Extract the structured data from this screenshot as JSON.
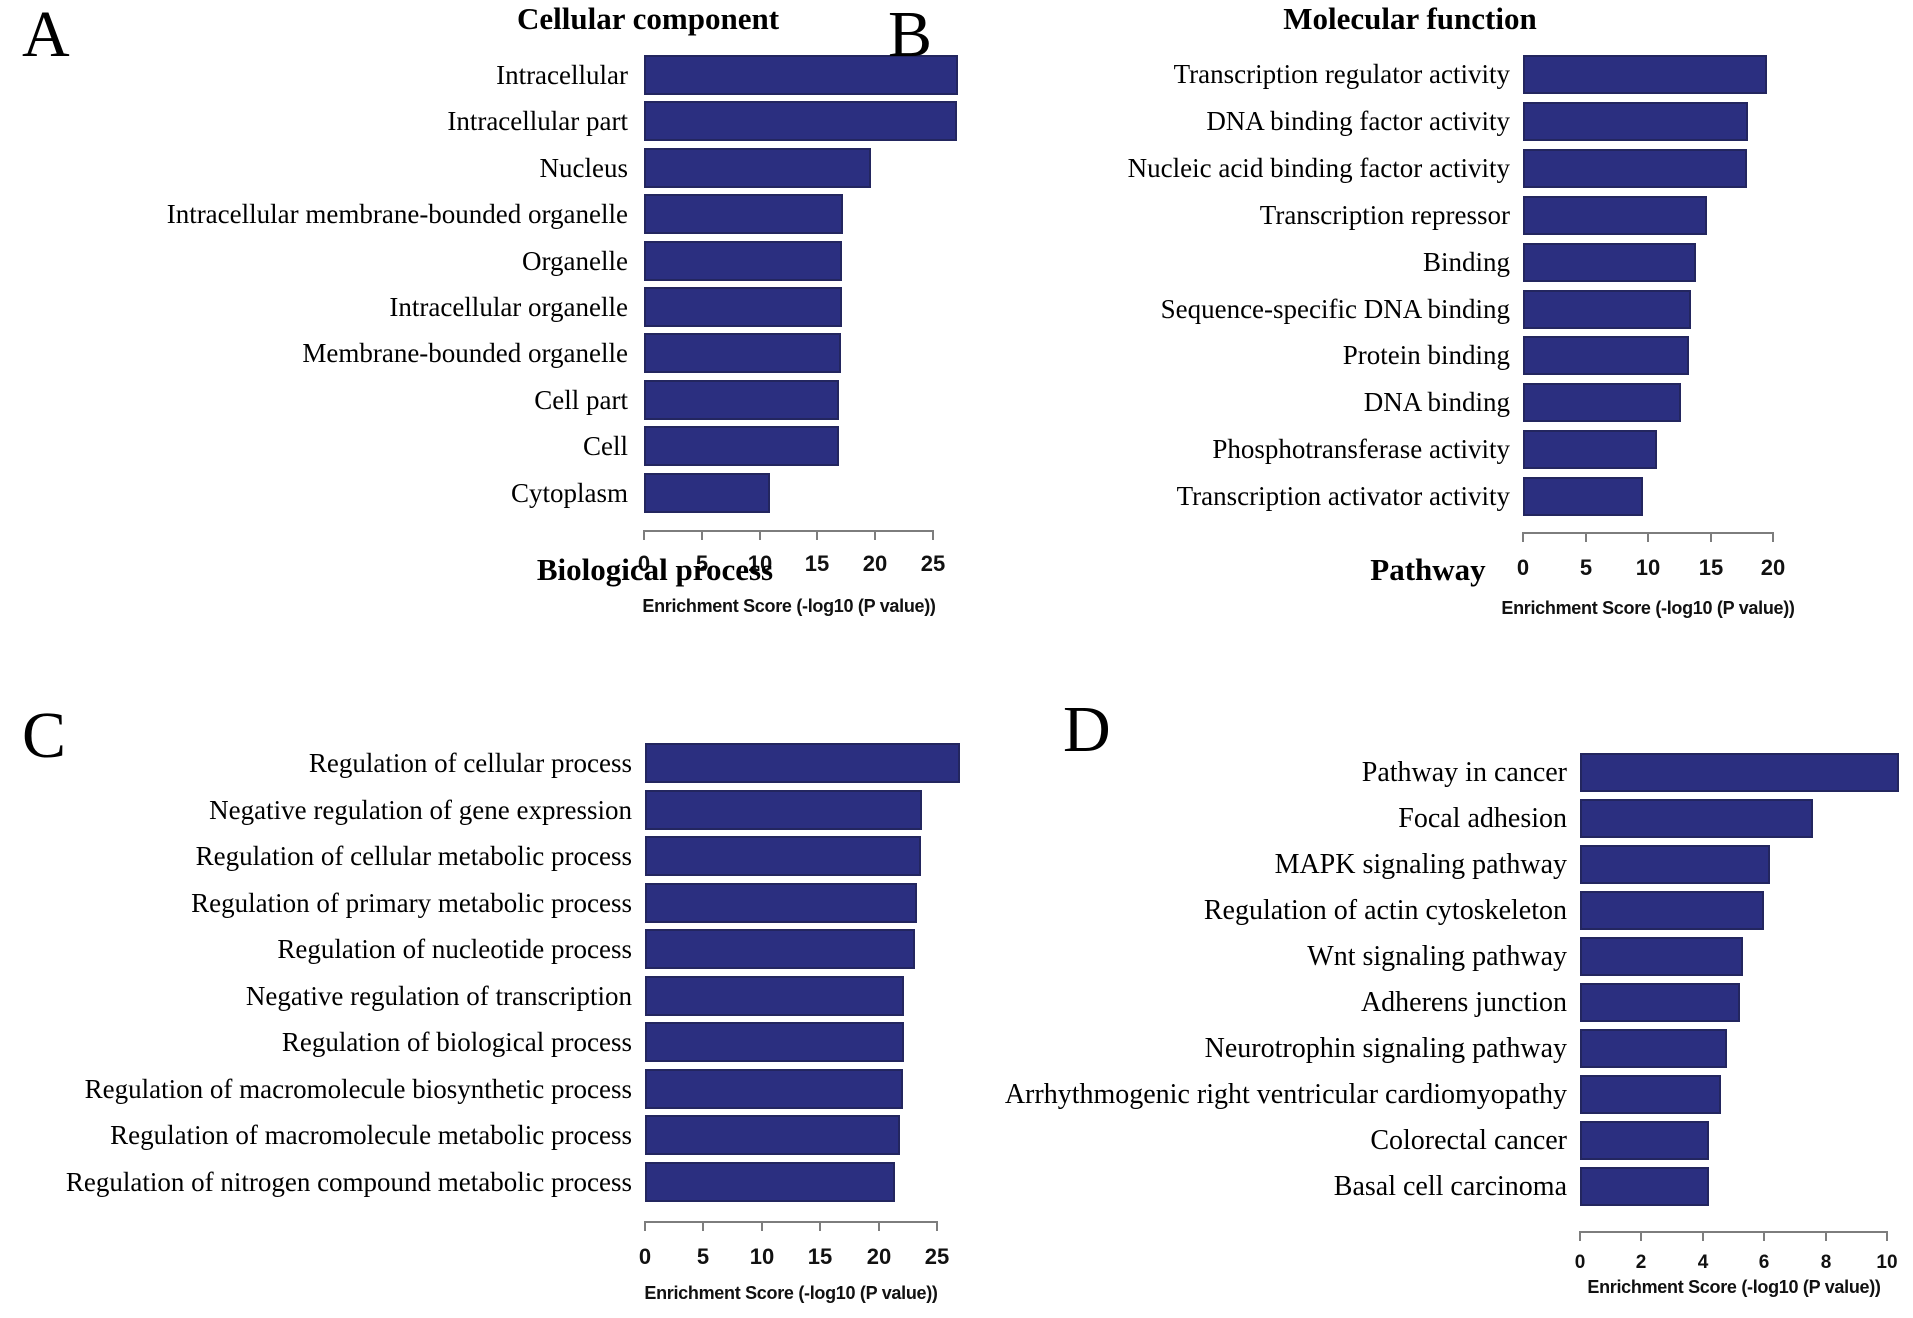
{
  "figure": {
    "background": "#ffffff",
    "description": "Four-panel GO/pathway enrichment bar chart figure"
  },
  "colors": {
    "bar_fill": "#2B2F80",
    "bar_border": "#23265F",
    "axis_line": "#7d7d7d",
    "text": "#000000"
  },
  "chart_data": [
    {
      "type": "bar",
      "panel_letter": "A",
      "title": "Cellular component",
      "orientation": "horizontal",
      "xlabel": "Enrichment Score (-log10 (P value))",
      "xlim": [
        0,
        25
      ],
      "xticks": [
        0,
        5,
        10,
        15,
        20,
        25
      ],
      "grid": false,
      "legend": null,
      "categories": [
        "Intracellular",
        "Intracellular part",
        "Nucleus",
        "Intracellular membrane-bounded organelle",
        "Organelle",
        "Intracellular organelle",
        "Membrane-bounded organelle",
        "Cell part",
        "Cell",
        "Cytoplasm"
      ],
      "values": [
        27.2,
        27.1,
        19.6,
        17.2,
        17.1,
        17.1,
        17.0,
        16.9,
        16.9,
        10.9
      ]
    },
    {
      "type": "bar",
      "panel_letter": "B",
      "title": "Molecular function",
      "orientation": "horizontal",
      "xlabel": "Enrichment Score (-log10 (P value))",
      "xlim": [
        0,
        20
      ],
      "xticks": [
        0,
        5,
        10,
        15,
        20
      ],
      "grid": false,
      "legend": null,
      "categories": [
        "Transcription regulator activity",
        "DNA binding factor activity",
        "Nucleic acid binding factor activity",
        "Transcription repressor",
        "Binding",
        "Sequence-specific DNA binding",
        "Protein binding",
        "DNA binding",
        "Phosphotransferase activity",
        "Transcription activator activity"
      ],
      "values": [
        19.5,
        18.0,
        17.9,
        14.7,
        13.8,
        13.4,
        13.3,
        12.6,
        10.7,
        9.6
      ]
    },
    {
      "type": "bar",
      "panel_letter": "C",
      "title": "Biological process",
      "orientation": "horizontal",
      "xlabel": "Enrichment Score (-log10 (P value))",
      "xlim": [
        0,
        25
      ],
      "xticks": [
        0,
        5,
        10,
        15,
        20,
        25
      ],
      "grid": false,
      "legend": null,
      "categories": [
        "Regulation of cellular process",
        "Negative regulation of gene expression",
        "Regulation of cellular metabolic process",
        "Regulation of primary metabolic process",
        "Regulation of nucleotide process",
        "Negative regulation of transcription",
        "Regulation of biological process",
        "Regulation of macromolecule biosynthetic process",
        "Regulation of macromolecule metabolic process",
        "Regulation of nitrogen compound metabolic process"
      ],
      "values": [
        27.0,
        23.7,
        23.6,
        23.3,
        23.1,
        22.2,
        22.2,
        22.1,
        21.8,
        21.4
      ]
    },
    {
      "type": "bar",
      "panel_letter": "D",
      "title": "Pathway",
      "orientation": "horizontal",
      "xlabel": "Enrichment Score (-log10 (P value))",
      "xlim": [
        0,
        10
      ],
      "xticks": [
        0,
        2,
        4,
        6,
        8,
        10
      ],
      "grid": false,
      "legend": null,
      "categories": [
        "Pathway in cancer",
        "Focal adhesion",
        "MAPK signaling pathway",
        "Regulation of actin cytoskeleton",
        "Wnt signaling pathway",
        "Adherens junction",
        "Neurotrophin signaling pathway",
        "Arrhythmogenic right ventricular cardiomyopathy",
        "Colorectal cancer",
        "Basal cell carcinoma"
      ],
      "values": [
        10.4,
        7.6,
        6.2,
        6.0,
        5.3,
        5.2,
        4.8,
        4.6,
        4.2,
        4.2
      ]
    }
  ]
}
